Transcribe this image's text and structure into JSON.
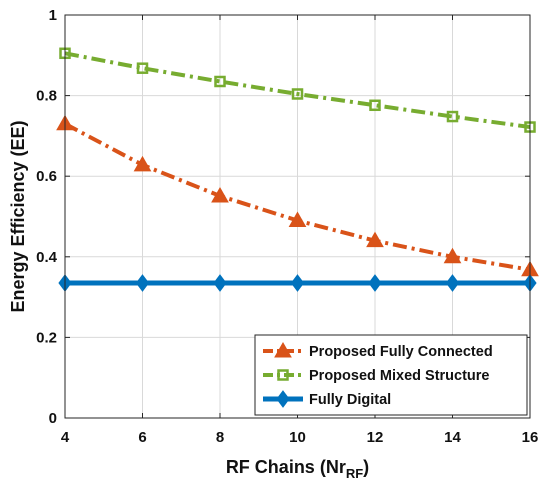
{
  "chart_data": {
    "type": "line",
    "title": "",
    "xlabel_main": "RF Chains (Nr",
    "xlabel_sub": "RF",
    "xlabel_close": ")",
    "ylabel": "Energy Efficiency (EE)",
    "x": [
      4,
      6,
      8,
      10,
      12,
      14,
      16
    ],
    "xlim": [
      4,
      16
    ],
    "ylim": [
      0,
      1
    ],
    "xticks": [
      "4",
      "6",
      "8",
      "10",
      "12",
      "14",
      "16"
    ],
    "yticks": [
      "0",
      "0.2",
      "0.4",
      "0.6",
      "0.8",
      "1"
    ],
    "ytick_values": [
      0,
      0.2,
      0.4,
      0.6,
      0.8,
      1
    ],
    "grid": true,
    "legend_position": "bottom-right",
    "series": [
      {
        "name": "Proposed Fully Connected",
        "values": [
          0.73,
          0.628,
          0.551,
          0.49,
          0.44,
          0.4,
          0.368
        ],
        "color": "#D95319",
        "line_style": "dash-dot",
        "marker": "triangle"
      },
      {
        "name": "Proposed Mixed Structure",
        "values": [
          0.905,
          0.868,
          0.835,
          0.804,
          0.776,
          0.748,
          0.722
        ],
        "color": "#77AC30",
        "line_style": "dash-dot",
        "marker": "square"
      },
      {
        "name": "Fully Digital",
        "values": [
          0.335,
          0.335,
          0.335,
          0.335,
          0.335,
          0.335,
          0.335
        ],
        "color": "#0072BD",
        "line_style": "solid",
        "marker": "diamond"
      }
    ]
  }
}
